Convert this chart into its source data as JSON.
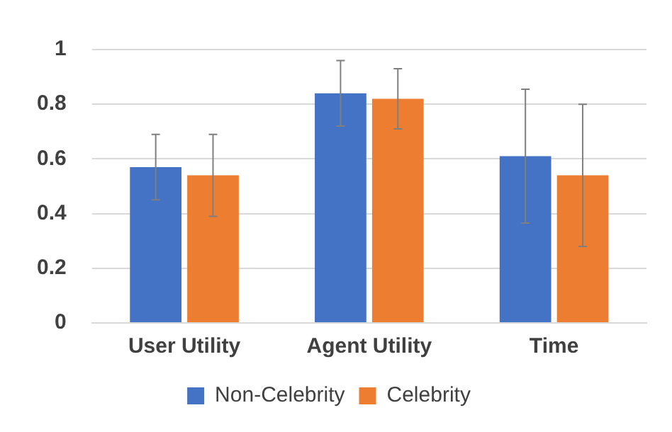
{
  "chart_data": {
    "type": "bar",
    "categories": [
      "User Utility",
      "Agent Utility",
      "Time"
    ],
    "series": [
      {
        "name": "Non-Celebrity",
        "color": "#4472c4",
        "values": [
          0.57,
          0.84,
          0.61
        ],
        "errors": [
          0.12,
          0.12,
          0.245
        ]
      },
      {
        "name": "Celebrity",
        "color": "#ed7d31",
        "values": [
          0.54,
          0.82,
          0.54
        ],
        "errors": [
          0.15,
          0.11,
          0.26
        ]
      }
    ],
    "ylim": [
      0,
      1
    ],
    "yticks": [
      0,
      0.2,
      0.4,
      0.6,
      0.8,
      1
    ],
    "grid": "y",
    "legend": "bottom"
  }
}
